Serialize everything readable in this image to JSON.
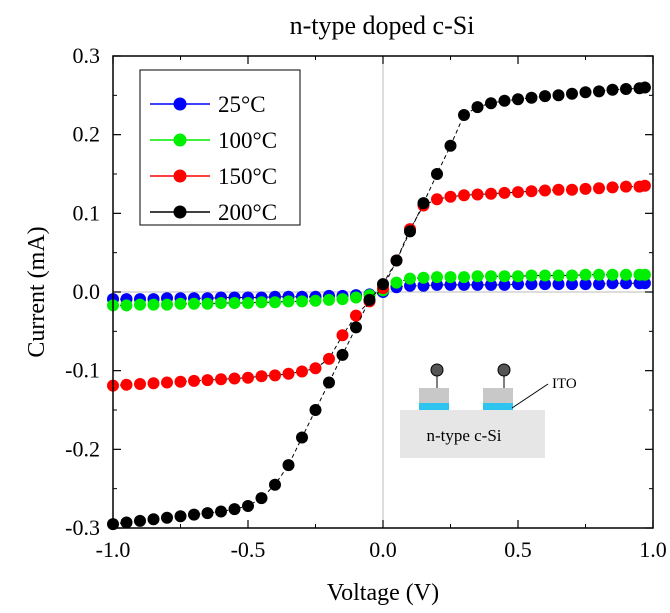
{
  "chart_data": {
    "type": "scatter",
    "title": "n-type doped c-Si",
    "xlabel": "Voltage (V)",
    "ylabel": "Current (mA)",
    "xlim": [
      -1.0,
      1.0
    ],
    "ylim": [
      -0.3,
      0.3
    ],
    "x_ticks": [
      -1.0,
      -0.5,
      0.0,
      0.5,
      1.0
    ],
    "x_tick_labels": [
      "-1.0",
      "-0.5",
      "0.0",
      "0.5",
      "1.0"
    ],
    "y_ticks": [
      -0.3,
      -0.2,
      -0.1,
      0.0,
      0.1,
      0.2,
      0.3
    ],
    "y_tick_labels": [
      "-0.3",
      "-0.2",
      "-0.1",
      "0.0",
      "0.1",
      "0.2",
      "0.3"
    ],
    "grid": "x=0 and y=0 reference lines",
    "legend_position": "top-left",
    "x": [
      -1.0,
      -0.95,
      -0.9,
      -0.85,
      -0.8,
      -0.75,
      -0.7,
      -0.65,
      -0.6,
      -0.55,
      -0.5,
      -0.45,
      -0.4,
      -0.35,
      -0.3,
      -0.25,
      -0.2,
      -0.15,
      -0.1,
      -0.05,
      0.0,
      0.05,
      0.1,
      0.15,
      0.2,
      0.25,
      0.3,
      0.35,
      0.4,
      0.45,
      0.5,
      0.55,
      0.6,
      0.65,
      0.7,
      0.75,
      0.8,
      0.85,
      0.9,
      0.95,
      0.97
    ],
    "series": [
      {
        "name": "25°C",
        "color": "#0000ff",
        "values": [
          -0.009,
          -0.009,
          -0.009,
          -0.009,
          -0.008,
          -0.008,
          -0.008,
          -0.008,
          -0.007,
          -0.007,
          -0.007,
          -0.007,
          -0.006,
          -0.006,
          -0.006,
          -0.006,
          -0.005,
          -0.005,
          -0.004,
          -0.003,
          0.0,
          0.006,
          0.008,
          0.008,
          0.009,
          0.009,
          0.009,
          0.009,
          0.009,
          0.009,
          0.01,
          0.01,
          0.01,
          0.01,
          0.01,
          0.01,
          0.01,
          0.011,
          0.011,
          0.011,
          0.011
        ]
      },
      {
        "name": "100°C",
        "color": "#00ee00",
        "values": [
          -0.017,
          -0.017,
          -0.016,
          -0.016,
          -0.016,
          -0.015,
          -0.015,
          -0.015,
          -0.014,
          -0.014,
          -0.014,
          -0.013,
          -0.013,
          -0.012,
          -0.012,
          -0.011,
          -0.01,
          -0.009,
          -0.007,
          -0.004,
          0.002,
          0.012,
          0.017,
          0.018,
          0.019,
          0.019,
          0.019,
          0.02,
          0.02,
          0.02,
          0.02,
          0.021,
          0.021,
          0.021,
          0.021,
          0.022,
          0.022,
          0.022,
          0.022,
          0.022,
          0.022
        ]
      },
      {
        "name": "150°C",
        "color": "#ff0000",
        "values": [
          -0.119,
          -0.118,
          -0.117,
          -0.116,
          -0.115,
          -0.114,
          -0.113,
          -0.112,
          -0.111,
          -0.11,
          -0.109,
          -0.107,
          -0.106,
          -0.104,
          -0.101,
          -0.097,
          -0.085,
          -0.055,
          -0.03,
          -0.012,
          0.005,
          0.04,
          0.08,
          0.11,
          0.118,
          0.121,
          0.123,
          0.124,
          0.125,
          0.126,
          0.127,
          0.128,
          0.129,
          0.13,
          0.13,
          0.131,
          0.132,
          0.133,
          0.134,
          0.134,
          0.135
        ]
      },
      {
        "name": "200°C",
        "color": "#000000",
        "values": [
          -0.295,
          -0.293,
          -0.291,
          -0.289,
          -0.287,
          -0.285,
          -0.283,
          -0.281,
          -0.279,
          -0.276,
          -0.272,
          -0.262,
          -0.245,
          -0.22,
          -0.185,
          -0.15,
          -0.115,
          -0.08,
          -0.045,
          -0.01,
          0.01,
          0.04,
          0.077,
          0.113,
          0.15,
          0.186,
          0.225,
          0.235,
          0.24,
          0.243,
          0.245,
          0.247,
          0.249,
          0.25,
          0.252,
          0.254,
          0.255,
          0.257,
          0.258,
          0.259,
          0.26
        ]
      }
    ],
    "inset": {
      "substrate_label": "n-type c-Si",
      "contact_label": "ITO",
      "substrate_color": "#e6e6e6",
      "pad_color": "#c8c8c8",
      "ito_color": "#2ec4f0",
      "probe_color": "#555555"
    }
  }
}
